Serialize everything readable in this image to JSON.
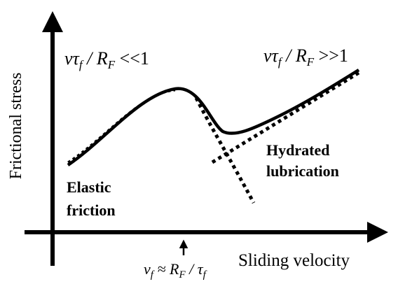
{
  "y_axis_label": "Frictional stress",
  "x_axis_label": "Sliding velocity",
  "left_regime": {
    "parts": [
      "vτ",
      "f",
      " / R",
      "F",
      " <<1"
    ]
  },
  "right_regime": {
    "parts": [
      "vτ",
      "f",
      " / R",
      "F",
      " >>1"
    ]
  },
  "left_label": [
    "Elastic",
    "friction"
  ],
  "right_label": [
    "Hydrated",
    "lubrication"
  ],
  "marker_label": {
    "parts": [
      "v",
      "f",
      " ≈ R",
      "F",
      " / τ",
      "f"
    ]
  }
}
